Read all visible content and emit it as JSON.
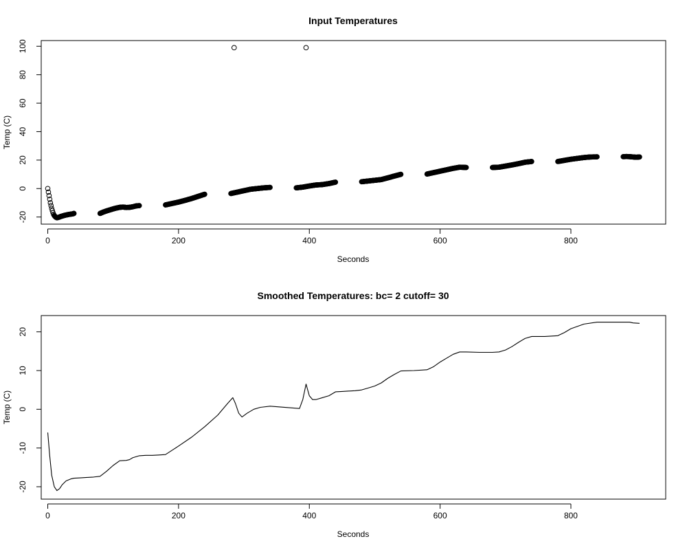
{
  "chart_data": [
    {
      "type": "scatter",
      "title": "Input Temperatures",
      "xlabel": "Seconds",
      "ylabel": "Temp (C)",
      "xlim": [
        -10,
        945
      ],
      "ylim": [
        -25,
        104
      ],
      "x_ticks": [
        0,
        200,
        400,
        600,
        800
      ],
      "y_ticks": [
        -20,
        0,
        20,
        40,
        60,
        80,
        100
      ],
      "marker": "open-circle",
      "color": "#000000",
      "grid": false,
      "segments": [
        {
          "x": [
            0,
            1,
            2,
            3,
            4,
            5,
            6,
            7,
            8,
            9,
            10,
            12,
            14,
            16,
            18,
            20,
            23,
            26,
            29,
            32,
            35,
            38,
            40
          ],
          "y": [
            0,
            -2.5,
            -5,
            -7.5,
            -10,
            -12,
            -14,
            -15.5,
            -17,
            -18.2,
            -19,
            -20,
            -20.5,
            -20.3,
            -20,
            -19.6,
            -19.2,
            -18.8,
            -18.5,
            -18.2,
            -18,
            -17.8,
            -17.5
          ]
        },
        {
          "x": [
            80,
            85,
            90,
            95,
            100,
            105,
            110,
            115,
            120,
            125,
            130,
            135,
            140
          ],
          "y": [
            -17.5,
            -16.5,
            -15.7,
            -15,
            -14.3,
            -13.7,
            -13.2,
            -13,
            -13.3,
            -13.2,
            -12.8,
            -12.2,
            -12
          ]
        },
        {
          "x": [
            180,
            190,
            200,
            210,
            220,
            230,
            240
          ],
          "y": [
            -11.5,
            -10.5,
            -9.5,
            -8.3,
            -7,
            -5.5,
            -4
          ]
        },
        {
          "x": [
            280,
            290,
            300,
            310,
            320,
            330,
            340
          ],
          "y": [
            -3.5,
            -2.5,
            -1.5,
            -0.5,
            0,
            0.5,
            0.8
          ]
        },
        {
          "x": [
            380,
            390,
            400,
            410,
            420,
            430,
            440
          ],
          "y": [
            0.5,
            1,
            1.8,
            2.5,
            2.8,
            3.5,
            4.5
          ]
        },
        {
          "x": [
            480,
            490,
            500,
            510,
            520,
            530,
            540
          ],
          "y": [
            4.8,
            5.3,
            5.8,
            6.3,
            7.5,
            8.8,
            10
          ]
        },
        {
          "x": [
            580,
            590,
            600,
            610,
            620,
            630,
            640
          ],
          "y": [
            10.2,
            11.2,
            12.2,
            13.2,
            14.2,
            15,
            14.8
          ]
        },
        {
          "x": [
            680,
            690,
            700,
            710,
            720,
            730,
            740
          ],
          "y": [
            14.8,
            15,
            15.8,
            16.6,
            17.5,
            18.5,
            19
          ]
        },
        {
          "x": [
            780,
            790,
            800,
            810,
            820,
            830,
            840
          ],
          "y": [
            19,
            19.8,
            20.6,
            21.2,
            21.8,
            22.2,
            22.3
          ]
        },
        {
          "x": [
            880,
            885,
            890,
            895,
            900,
            905
          ],
          "y": [
            22.4,
            22.5,
            22.4,
            22.2,
            22,
            22.2
          ]
        }
      ],
      "outliers": {
        "x": [
          285,
          395
        ],
        "y": [
          99,
          99
        ]
      }
    },
    {
      "type": "line",
      "title": "Smoothed Temperatures: bc= 2 cutoff= 30",
      "xlabel": "Seconds",
      "ylabel": "Temp (C)",
      "xlim": [
        -10,
        945
      ],
      "ylim": [
        -23.2,
        24.2
      ],
      "x_ticks": [
        0,
        200,
        400,
        600,
        800
      ],
      "y_ticks": [
        -20,
        -10,
        0,
        10,
        20
      ],
      "color": "#000000",
      "grid": false,
      "x": [
        0,
        3,
        6,
        10,
        14,
        18,
        22,
        28,
        35,
        40,
        50,
        60,
        70,
        80,
        90,
        100,
        110,
        120,
        125,
        130,
        140,
        150,
        160,
        170,
        180,
        200,
        220,
        240,
        260,
        275,
        283,
        287,
        292,
        297,
        305,
        315,
        325,
        340,
        355,
        370,
        385,
        390,
        395,
        400,
        405,
        410,
        420,
        430,
        440,
        450,
        460,
        470,
        480,
        490,
        500,
        510,
        520,
        530,
        540,
        560,
        580,
        590,
        600,
        610,
        620,
        630,
        640,
        660,
        680,
        690,
        700,
        710,
        720,
        730,
        740,
        760,
        780,
        790,
        800,
        820,
        840,
        860,
        880,
        890,
        895,
        905
      ],
      "y": [
        -6,
        -12,
        -17,
        -20,
        -21,
        -20.5,
        -19.5,
        -18.5,
        -18,
        -17.8,
        -17.7,
        -17.6,
        -17.5,
        -17.3,
        -16,
        -14.5,
        -13.3,
        -13.2,
        -13,
        -12.5,
        -12,
        -11.9,
        -11.9,
        -11.8,
        -11.7,
        -9.5,
        -7.2,
        -4.5,
        -1.5,
        1.5,
        3,
        1.5,
        -1,
        -2,
        -1,
        0,
        0.5,
        0.8,
        0.6,
        0.4,
        0.2,
        2.5,
        6.5,
        3.5,
        2.5,
        2.5,
        3,
        3.5,
        4.5,
        4.6,
        4.7,
        4.8,
        5,
        5.5,
        6,
        6.8,
        8,
        9,
        9.9,
        10,
        10.2,
        11,
        12.2,
        13.2,
        14.2,
        14.8,
        14.8,
        14.7,
        14.7,
        14.8,
        15.3,
        16.2,
        17.3,
        18.3,
        18.8,
        18.8,
        19,
        19.8,
        20.8,
        22,
        22.5,
        22.5,
        22.5,
        22.5,
        22.3,
        22.2
      ]
    }
  ]
}
